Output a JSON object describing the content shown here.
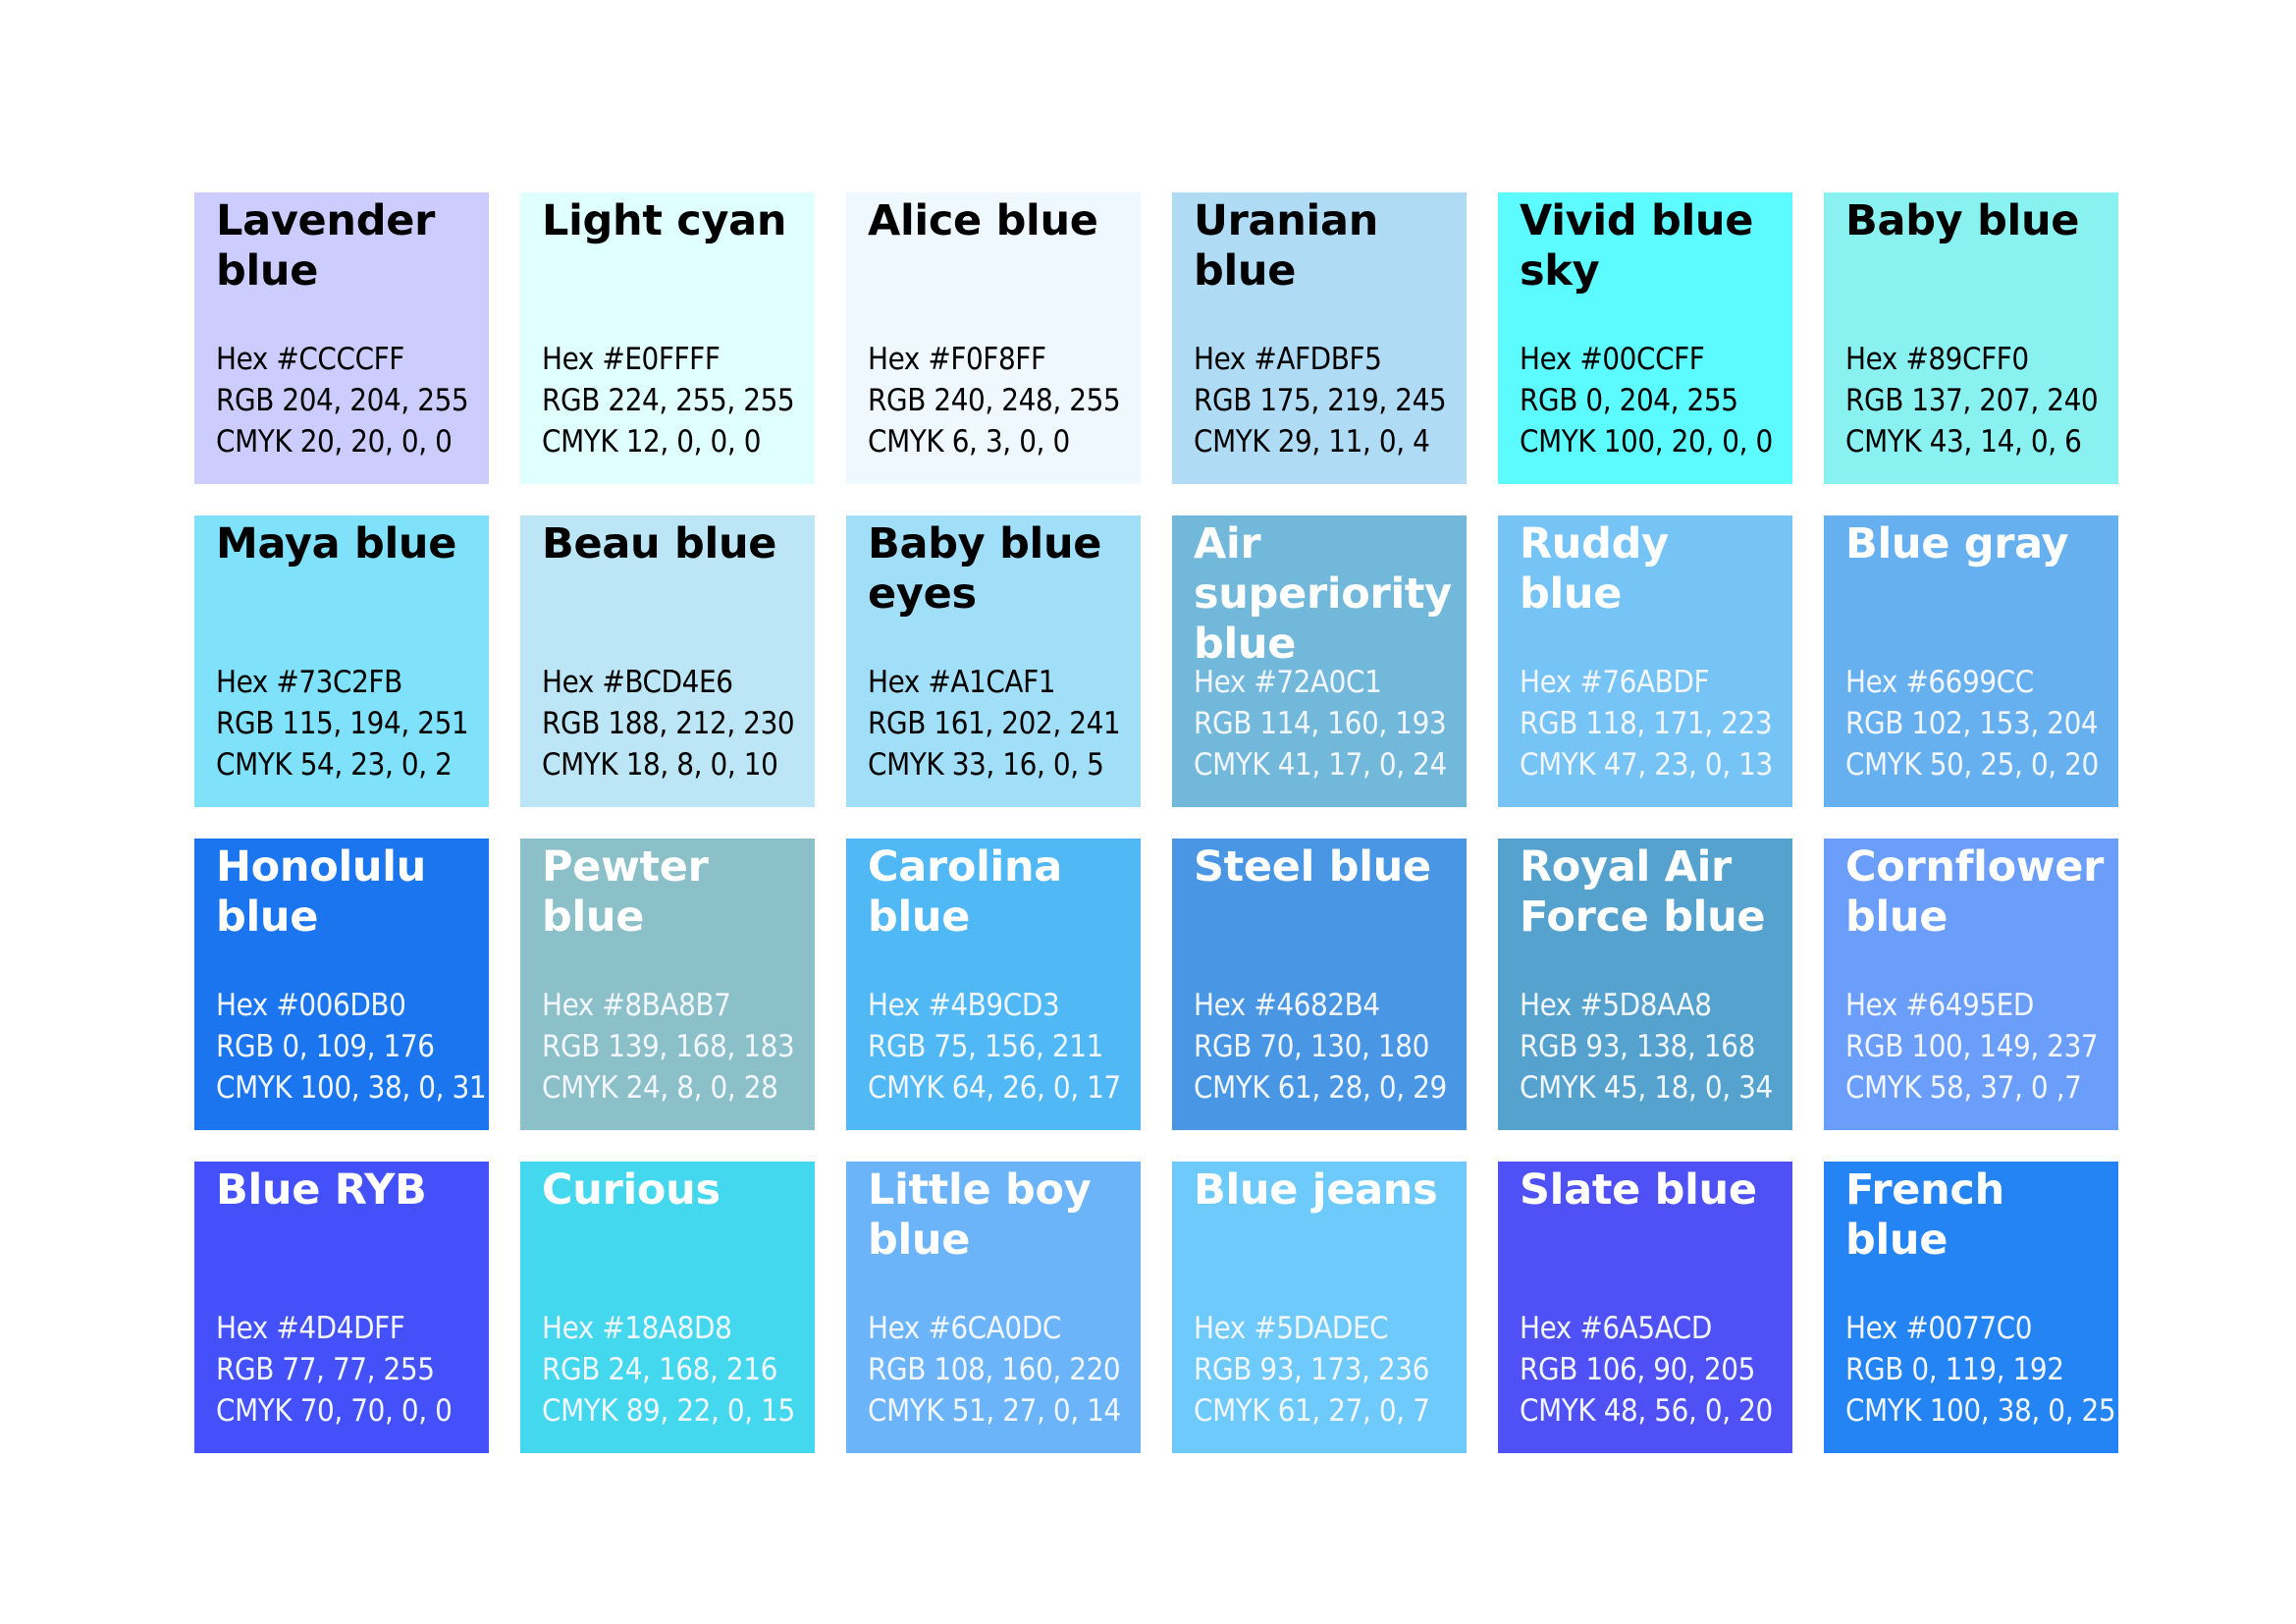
{
  "swatches": [
    {
      "name": "Lavender blue",
      "hex": "Hex #CCCCFF",
      "rgb": "RGB 204, 204, 255",
      "cmyk": "CMYK 20, 20, 0, 0",
      "color": "#CCCCFF",
      "text_color": "dark"
    },
    {
      "name": "Light cyan",
      "hex": "Hex #E0FFFF",
      "rgb": "RGB 224, 255, 255",
      "cmyk": "CMYK 12, 0, 0, 0",
      "color": "#E0FFFF",
      "text_color": "dark"
    },
    {
      "name": "Alice blue",
      "hex": "Hex #F0F8FF",
      "rgb": "RGB 240, 248, 255",
      "cmyk": "CMYK 6, 3, 0, 0",
      "color": "#F0F8FF",
      "text_color": "dark"
    },
    {
      "name": "Uranian blue",
      "hex": "Hex #AFDBF5",
      "rgb": "RGB 175, 219, 245",
      "cmyk": "CMYK 29, 11, 0, 4",
      "color": "#AFDBF5",
      "text_color": "dark"
    },
    {
      "name": "Vivid blue sky",
      "hex": "Hex #00CCFF",
      "rgb": "RGB 0, 204, 255",
      "cmyk": "CMYK 100, 20, 0, 0",
      "color": "#5CFBFF",
      "text_color": "dark"
    },
    {
      "name": "Baby blue",
      "hex": "Hex #89CFF0",
      "rgb": "RGB 137, 207, 240",
      "cmyk": "CMYK 43, 14, 0, 6",
      "color": "#89F2F0",
      "text_color": "dark"
    },
    {
      "name": "Maya blue",
      "hex": "Hex #73C2FB",
      "rgb": "RGB 115, 194, 251",
      "cmyk": "CMYK 54, 23, 0, 2",
      "color": "#7FE2FA",
      "text_color": "dark"
    },
    {
      "name": "Beau blue",
      "hex": "Hex #BCD4E6",
      "rgb": "RGB 188, 212, 230",
      "cmyk": "CMYK 18, 8, 0, 10",
      "color": "#BCE6F5",
      "text_color": "dark"
    },
    {
      "name": "Baby blue eyes",
      "hex": "Hex #A1CAF1",
      "rgb": "RGB 161, 202, 241",
      "cmyk": "CMYK 33, 16, 0, 5",
      "color": "#A1DEF8",
      "text_color": "dark"
    },
    {
      "name": "Air superiority blue",
      "hex": "Hex #72A0C1",
      "rgb": "RGB 114, 160, 193",
      "cmyk": "CMYK 41, 17, 0, 24",
      "color": "#72B8DA",
      "text_color": "light"
    },
    {
      "name": "Ruddy blue",
      "hex": "Hex #76ABDF",
      "rgb": "RGB 118, 171, 223",
      "cmyk": "CMYK 47, 23, 0, 13",
      "color": "#76C3F5",
      "text_color": "light"
    },
    {
      "name": "Blue gray",
      "hex": "Hex #6699CC",
      "rgb": "RGB 102, 153, 204",
      "cmyk": "CMYK 50, 25, 0, 20",
      "color": "#66B0F0",
      "text_color": "light"
    },
    {
      "name": "Honolulu blue",
      "hex": "Hex #006DB0",
      "rgb": "RGB 0, 109, 176",
      "cmyk": "CMYK 100, 38, 0, 31",
      "color": "#1A75EE",
      "text_color": "light"
    },
    {
      "name": "Pewter blue",
      "hex": "Hex #8BA8B7",
      "rgb": "RGB 139, 168, 183",
      "cmyk": "CMYK 24, 8, 0, 28",
      "color": "#8BC0C9",
      "text_color": "light"
    },
    {
      "name": "Carolina blue",
      "hex": "Hex #4B9CD3",
      "rgb": "RGB 75, 156, 211",
      "cmyk": "CMYK 64, 26, 0, 17",
      "color": "#50B8F5",
      "text_color": "light"
    },
    {
      "name": "Steel blue",
      "hex": "Hex #4682B4",
      "rgb": "RGB 70, 130, 180",
      "cmyk": "CMYK 61, 28, 0, 29",
      "color": "#4896E4",
      "text_color": "light"
    },
    {
      "name": "Royal Air Force blue",
      "hex": "Hex #5D8AA8",
      "rgb": "RGB 93, 138, 168",
      "cmyk": "CMYK 45, 18, 0, 34",
      "color": "#55A2CF",
      "text_color": "light"
    },
    {
      "name": "Cornflower blue",
      "hex": "Hex #6495ED",
      "rgb": "RGB 100, 149, 237",
      "cmyk": "CMYK 58, 37, 0 ,7",
      "color": "#6B9EFB",
      "text_color": "light"
    },
    {
      "name": "Blue RYB",
      "hex": "Hex #4D4DFF",
      "rgb": "RGB 77, 77, 255",
      "cmyk": "CMYK 70, 70, 0, 0",
      "color": "#4450FA",
      "text_color": "light"
    },
    {
      "name": "Curious",
      "hex": "Hex #18A8D8",
      "rgb": "RGB 24, 168, 216",
      "cmyk": "CMYK 89, 22, 0, 15",
      "color": "#43D8EE",
      "text_color": "light"
    },
    {
      "name": "Little boy blue",
      "hex": "Hex #6CA0DC",
      "rgb": "RGB 108, 160, 220",
      "cmyk": "CMYK 51, 27, 0, 14",
      "color": "#6CB4FA",
      "text_color": "light"
    },
    {
      "name": "Blue jeans",
      "hex": "Hex #5DADEC",
      "rgb": "RGB 93, 173, 236",
      "cmyk": "CMYK 61, 27, 0, 7",
      "color": "#6DCAFA",
      "text_color": "light"
    },
    {
      "name": "Slate blue",
      "hex": "Hex #6A5ACD",
      "rgb": "RGB 106, 90, 205",
      "cmyk": "CMYK 48, 56, 0, 20",
      "color": "#5050F7",
      "text_color": "light"
    },
    {
      "name": "French blue",
      "hex": "Hex #0077C0",
      "rgb": "RGB 0, 119, 192",
      "cmyk": "CMYK 100, 38, 0, 25",
      "color": "#2484F3",
      "text_color": "light"
    }
  ]
}
